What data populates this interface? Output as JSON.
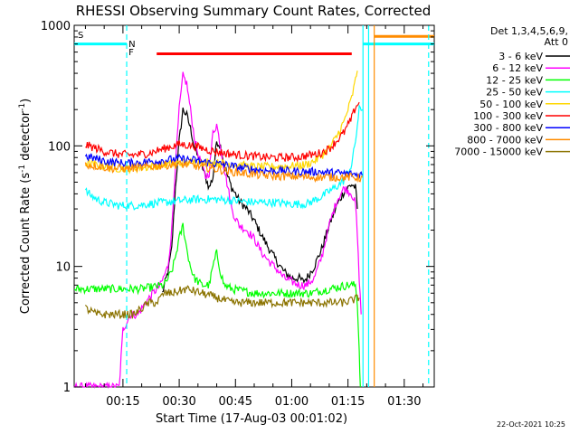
{
  "chart_data": {
    "type": "line",
    "title": "RHESSI Observing Summary Count Rates, Corrected",
    "xlabel": "Start Time (17-Aug-03 00:01:02)",
    "ylabel_main": "Corrected Count Rate (s",
    "ylabel_sup1": "-1",
    "ylabel_mid": " detector",
    "ylabel_sup2": "-1",
    "ylabel_end": ")",
    "x_unit": "minutes since 00:00 UT",
    "xlim": [
      2,
      98
    ],
    "ylim": [
      1,
      1000
    ],
    "yscale": "log",
    "x_ticks": [
      {
        "value": 15,
        "label": "00:15"
      },
      {
        "value": 30,
        "label": "00:30"
      },
      {
        "value": 45,
        "label": "00:45"
      },
      {
        "value": 60,
        "label": "01:00"
      },
      {
        "value": 75,
        "label": "01:15"
      },
      {
        "value": 90,
        "label": "01:30"
      }
    ],
    "y_ticks": [
      {
        "value": 1,
        "label": "1"
      },
      {
        "value": 10,
        "label": "10"
      },
      {
        "value": 100,
        "label": "100"
      },
      {
        "value": 1000,
        "label": "1000"
      }
    ],
    "legend_header": [
      "Det 1,3,4,5,6,9,",
      "Att 0"
    ],
    "legend_position": "right",
    "series": [
      {
        "name": "3 - 6 keV",
        "color": "#000000",
        "points": [
          [
            25.5,
            6
          ],
          [
            27,
            9
          ],
          [
            28,
            14
          ],
          [
            29,
            45
          ],
          [
            30,
            110
          ],
          [
            31,
            200
          ],
          [
            32,
            180
          ],
          [
            33,
            140
          ],
          [
            34,
            100
          ],
          [
            35,
            80
          ],
          [
            36,
            70
          ],
          [
            37,
            55
          ],
          [
            38,
            45
          ],
          [
            39,
            55
          ],
          [
            40,
            110
          ],
          [
            41,
            100
          ],
          [
            42,
            70
          ],
          [
            43,
            55
          ],
          [
            44,
            45
          ],
          [
            45,
            40
          ],
          [
            46,
            35
          ],
          [
            48,
            30
          ],
          [
            50,
            24
          ],
          [
            52,
            18
          ],
          [
            54,
            14
          ],
          [
            56,
            11
          ],
          [
            58,
            9
          ],
          [
            60,
            8
          ],
          [
            62,
            8
          ],
          [
            63,
            7.5
          ],
          [
            64,
            8
          ],
          [
            66,
            10
          ],
          [
            68,
            14
          ],
          [
            70,
            22
          ],
          [
            72,
            32
          ],
          [
            74,
            42
          ],
          [
            76,
            48
          ],
          [
            77,
            45
          ],
          [
            77.5,
            30
          ]
        ]
      },
      {
        "name": "6 - 12 keV",
        "color": "#ff00ff",
        "points": [
          [
            2,
            1
          ],
          [
            14,
            1
          ],
          [
            15,
            3
          ],
          [
            17,
            4
          ],
          [
            19,
            4
          ],
          [
            21,
            5
          ],
          [
            23,
            6
          ],
          [
            25,
            7
          ],
          [
            27,
            10
          ],
          [
            28,
            20
          ],
          [
            29,
            70
          ],
          [
            30,
            200
          ],
          [
            31,
            380
          ],
          [
            32,
            330
          ],
          [
            33,
            200
          ],
          [
            34,
            120
          ],
          [
            35,
            85
          ],
          [
            36,
            70
          ],
          [
            37,
            55
          ],
          [
            38,
            60
          ],
          [
            39,
            130
          ],
          [
            40,
            150
          ],
          [
            41,
            100
          ],
          [
            42,
            65
          ],
          [
            43,
            45
          ],
          [
            44,
            30
          ],
          [
            45,
            25
          ],
          [
            46,
            22
          ],
          [
            48,
            20
          ],
          [
            50,
            17
          ],
          [
            52,
            13
          ],
          [
            54,
            11
          ],
          [
            56,
            9.5
          ],
          [
            58,
            8
          ],
          [
            60,
            7.5
          ],
          [
            62,
            7
          ],
          [
            64,
            7
          ],
          [
            66,
            8
          ],
          [
            68,
            12
          ],
          [
            70,
            22
          ],
          [
            72,
            35
          ],
          [
            74,
            45
          ],
          [
            76,
            40
          ],
          [
            77,
            33
          ],
          [
            77.5,
            18
          ],
          [
            78,
            8
          ],
          [
            78.5,
            4
          ]
        ]
      },
      {
        "name": "12 - 25 keV",
        "color": "#00ff00",
        "points": [
          [
            2,
            6.5
          ],
          [
            10,
            6.5
          ],
          [
            20,
            6.5
          ],
          [
            26,
            7
          ],
          [
            28,
            9
          ],
          [
            29,
            12
          ],
          [
            30,
            17
          ],
          [
            31,
            22
          ],
          [
            32,
            14
          ],
          [
            33,
            10
          ],
          [
            34,
            8
          ],
          [
            36,
            7
          ],
          [
            38,
            7
          ],
          [
            39,
            10
          ],
          [
            40,
            13
          ],
          [
            41,
            9
          ],
          [
            42,
            7
          ],
          [
            44,
            6.5
          ],
          [
            50,
            6
          ],
          [
            60,
            6
          ],
          [
            65,
            6
          ],
          [
            70,
            6.5
          ],
          [
            75,
            7
          ],
          [
            77,
            7
          ],
          [
            77.5,
            5
          ],
          [
            78,
            2
          ],
          [
            78.3,
            1
          ]
        ]
      },
      {
        "name": "25 - 50 keV",
        "color": "#00ffff",
        "points": [
          [
            5,
            42
          ],
          [
            8,
            36
          ],
          [
            10,
            34
          ],
          [
            14,
            32
          ],
          [
            18,
            32
          ],
          [
            22,
            33
          ],
          [
            26,
            34
          ],
          [
            30,
            35
          ],
          [
            35,
            36
          ],
          [
            40,
            36
          ],
          [
            45,
            35
          ],
          [
            50,
            34
          ],
          [
            55,
            34
          ],
          [
            60,
            33
          ],
          [
            64,
            33
          ],
          [
            68,
            38
          ],
          [
            70,
            42
          ],
          [
            72,
            46
          ],
          [
            74,
            52
          ],
          [
            76,
            70
          ],
          [
            77,
            110
          ],
          [
            78,
            200
          ],
          [
            79,
            200
          ]
        ]
      },
      {
        "name": "50 - 100 keV",
        "color": "#ffd700",
        "points": [
          [
            5,
            72
          ],
          [
            10,
            68
          ],
          [
            14,
            65
          ],
          [
            18,
            65
          ],
          [
            22,
            67
          ],
          [
            26,
            70
          ],
          [
            30,
            72
          ],
          [
            35,
            74
          ],
          [
            40,
            72
          ],
          [
            45,
            70
          ],
          [
            50,
            67
          ],
          [
            55,
            67
          ],
          [
            60,
            68
          ],
          [
            64,
            70
          ],
          [
            67,
            78
          ],
          [
            70,
            95
          ],
          [
            72,
            120
          ],
          [
            74,
            160
          ],
          [
            76,
            250
          ],
          [
            77,
            350
          ],
          [
            77.5,
            420
          ]
        ]
      },
      {
        "name": "100 - 300 keV",
        "color": "#ff0000",
        "points": [
          [
            5,
            102
          ],
          [
            8,
            95
          ],
          [
            10,
            90
          ],
          [
            14,
            85
          ],
          [
            18,
            84
          ],
          [
            22,
            87
          ],
          [
            26,
            95
          ],
          [
            30,
            103
          ],
          [
            34,
            100
          ],
          [
            38,
            92
          ],
          [
            42,
            87
          ],
          [
            46,
            84
          ],
          [
            50,
            82
          ],
          [
            54,
            80
          ],
          [
            58,
            80
          ],
          [
            62,
            81
          ],
          [
            66,
            85
          ],
          [
            68,
            88
          ],
          [
            70,
            95
          ],
          [
            72,
            110
          ],
          [
            74,
            130
          ],
          [
            76,
            170
          ],
          [
            77,
            210
          ],
          [
            78,
            230
          ]
        ]
      },
      {
        "name": "300 - 800 keV",
        "color": "#0000ff",
        "points": [
          [
            5,
            82
          ],
          [
            8,
            78
          ],
          [
            10,
            75
          ],
          [
            14,
            72
          ],
          [
            18,
            72
          ],
          [
            22,
            74
          ],
          [
            26,
            76
          ],
          [
            30,
            78
          ],
          [
            34,
            76
          ],
          [
            38,
            72
          ],
          [
            42,
            70
          ],
          [
            46,
            66
          ],
          [
            50,
            64
          ],
          [
            54,
            62
          ],
          [
            58,
            62
          ],
          [
            62,
            61
          ],
          [
            66,
            61
          ],
          [
            70,
            60
          ],
          [
            74,
            59
          ],
          [
            77,
            58
          ],
          [
            79,
            58
          ]
        ]
      },
      {
        "name": "800 - 7000 keV",
        "color": "#ff8c00",
        "points": [
          [
            5,
            70
          ],
          [
            8,
            68
          ],
          [
            12,
            65
          ],
          [
            16,
            65
          ],
          [
            20,
            66
          ],
          [
            24,
            68
          ],
          [
            28,
            70
          ],
          [
            32,
            70
          ],
          [
            36,
            67
          ],
          [
            40,
            64
          ],
          [
            44,
            61
          ],
          [
            48,
            59
          ],
          [
            52,
            57
          ],
          [
            56,
            56
          ],
          [
            60,
            56
          ],
          [
            64,
            55
          ],
          [
            68,
            55
          ],
          [
            72,
            55
          ],
          [
            76,
            55
          ],
          [
            79,
            54
          ]
        ]
      },
      {
        "name": "7000 - 15000 keV",
        "color": "#8b7300",
        "points": [
          [
            5,
            4.5
          ],
          [
            8,
            4
          ],
          [
            12,
            4
          ],
          [
            15,
            4
          ],
          [
            18,
            4
          ],
          [
            20,
            4.5
          ],
          [
            22,
            5
          ],
          [
            24,
            5
          ],
          [
            26,
            6
          ],
          [
            28,
            6
          ],
          [
            32,
            6.5
          ],
          [
            36,
            6
          ],
          [
            40,
            5.5
          ],
          [
            44,
            5
          ],
          [
            50,
            5
          ],
          [
            56,
            5
          ],
          [
            60,
            5
          ],
          [
            66,
            5
          ],
          [
            70,
            5
          ],
          [
            74,
            5
          ],
          [
            78,
            5.5
          ]
        ]
      }
    ],
    "annotations": {
      "flag_S": "S",
      "flag_N": "N",
      "flag_F": "F",
      "bars": [
        {
          "name": "saa",
          "color": "#00ffff",
          "level": 700,
          "x_start": 2,
          "x_end": 16
        },
        {
          "name": "flare",
          "color": "#ff0000",
          "level": 580,
          "x_start": 24,
          "x_end": 76
        },
        {
          "name": "night",
          "color": "#00ffff",
          "level": 700,
          "x_start": 79,
          "x_end": 98
        },
        {
          "name": "saa-end",
          "color": "#ff8c00",
          "level": 810,
          "x_start": 82,
          "x_end": 98
        }
      ],
      "vlines": [
        {
          "x": 16,
          "color": "#00ffff",
          "dashed": true
        },
        {
          "x": 79,
          "color": "#00ffff",
          "dashed": false
        },
        {
          "x": 80.5,
          "color": "#00ffff",
          "dashed": false
        },
        {
          "x": 82,
          "color": "#ff8c00",
          "dashed": false
        },
        {
          "x": 96.5,
          "color": "#00ffff",
          "dashed": true
        }
      ]
    },
    "timestamp": "22-Oct-2021 10:25"
  }
}
